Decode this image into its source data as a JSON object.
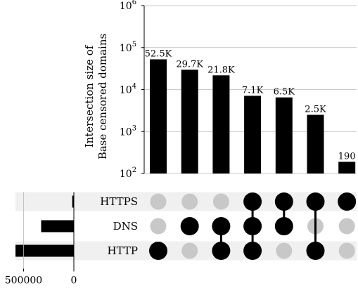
{
  "chart_data": {
    "type": "upset",
    "ylabel": [
      "Intersection size of",
      "Base censored domains"
    ],
    "yscale": "log",
    "ylim": [
      100,
      1000000
    ],
    "yticks": [
      {
        "base": "10",
        "exp": "2",
        "value": 100
      },
      {
        "base": "10",
        "exp": "3",
        "value": 1000
      },
      {
        "base": "10",
        "exp": "4",
        "value": 10000
      },
      {
        "base": "10",
        "exp": "5",
        "value": 100000
      },
      {
        "base": "10",
        "exp": "6",
        "value": 1000000
      }
    ],
    "intersections": [
      {
        "value": 52500,
        "label": "52.5K",
        "members": [
          "HTTP"
        ]
      },
      {
        "value": 29700,
        "label": "29.7K",
        "members": [
          "DNS"
        ]
      },
      {
        "value": 21800,
        "label": "21.8K",
        "members": [
          "DNS",
          "HTTP"
        ]
      },
      {
        "value": 7100,
        "label": "7.1K",
        "members": [
          "HTTPS",
          "DNS",
          "HTTP"
        ]
      },
      {
        "value": 6500,
        "label": "6.5K",
        "members": [
          "HTTPS",
          "DNS"
        ]
      },
      {
        "value": 2500,
        "label": "2.5K",
        "members": [
          "HTTPS",
          "HTTP"
        ]
      },
      {
        "value": 190,
        "label": "190",
        "members": [
          "HTTPS"
        ]
      }
    ],
    "sets": [
      {
        "name": "HTTPS",
        "size": 16300
      },
      {
        "name": "DNS",
        "size": 325000
      },
      {
        "name": "HTTP",
        "size": 580000
      }
    ],
    "set_size_ticks": [
      {
        "label": "500000",
        "value": 500000
      },
      {
        "label": "0",
        "value": 0
      }
    ],
    "set_size_max": 580000,
    "grid": true
  }
}
